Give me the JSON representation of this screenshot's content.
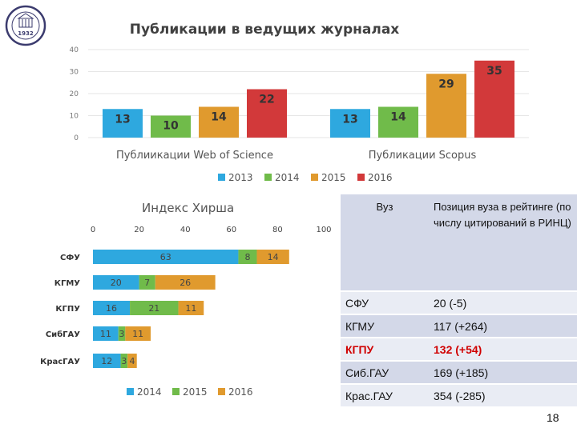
{
  "logo": {
    "text": "1932"
  },
  "chart_data": [
    {
      "type": "bar",
      "title": "Публикации в ведущих журналах",
      "groups": [
        "Публиикации Web of Science",
        "Публикации Scopus"
      ],
      "series": [
        {
          "name": "2013",
          "color": "#2ea8df",
          "values": [
            13,
            13
          ]
        },
        {
          "name": "2014",
          "color": "#70bb4a",
          "values": [
            10,
            14
          ]
        },
        {
          "name": "2015",
          "color": "#e09a2e",
          "values": [
            14,
            29
          ]
        },
        {
          "name": "2016",
          "color": "#d2393a",
          "values": [
            22,
            35
          ]
        }
      ],
      "ylim": [
        0,
        40
      ],
      "yticks": [
        0,
        10,
        20,
        30,
        40
      ],
      "grid": true,
      "legend": "bottom"
    },
    {
      "type": "bar",
      "orientation": "horizontal",
      "stacked": true,
      "title": "Индекс Хирша",
      "categories": [
        "СФУ",
        "КГМУ",
        "КГПУ",
        "СибГАУ",
        "КрасГАУ"
      ],
      "series": [
        {
          "name": "2014",
          "color": "#2ea8df",
          "values": [
            63,
            20,
            16,
            11,
            12
          ]
        },
        {
          "name": "2015",
          "color": "#70bb4a",
          "values": [
            8,
            7,
            21,
            3,
            3
          ]
        },
        {
          "name": "2016",
          "color": "#e09a2e",
          "values": [
            14,
            26,
            11,
            11,
            4
          ]
        }
      ],
      "xlim": [
        0,
        100
      ],
      "xticks": [
        0,
        20,
        40,
        60,
        80,
        100
      ],
      "legend": "bottom"
    }
  ],
  "table": {
    "header": [
      "Вуз",
      "Позиция вуза в рейтинге (по числу цитирований в РИНЦ)"
    ],
    "rows": [
      {
        "name": "СФУ",
        "value": "20 (-5)",
        "highlight": false
      },
      {
        "name": "КГМУ",
        "value": "117 (+264)",
        "highlight": false
      },
      {
        "name": "КГПУ",
        "value": "132 (+54)",
        "highlight": true
      },
      {
        "name": "Сиб.ГАУ",
        "value": "169 (+185)",
        "highlight": false
      },
      {
        "name": "Крас.ГАУ",
        "value": "354 (-285)",
        "highlight": false
      }
    ]
  },
  "page_number": "18"
}
